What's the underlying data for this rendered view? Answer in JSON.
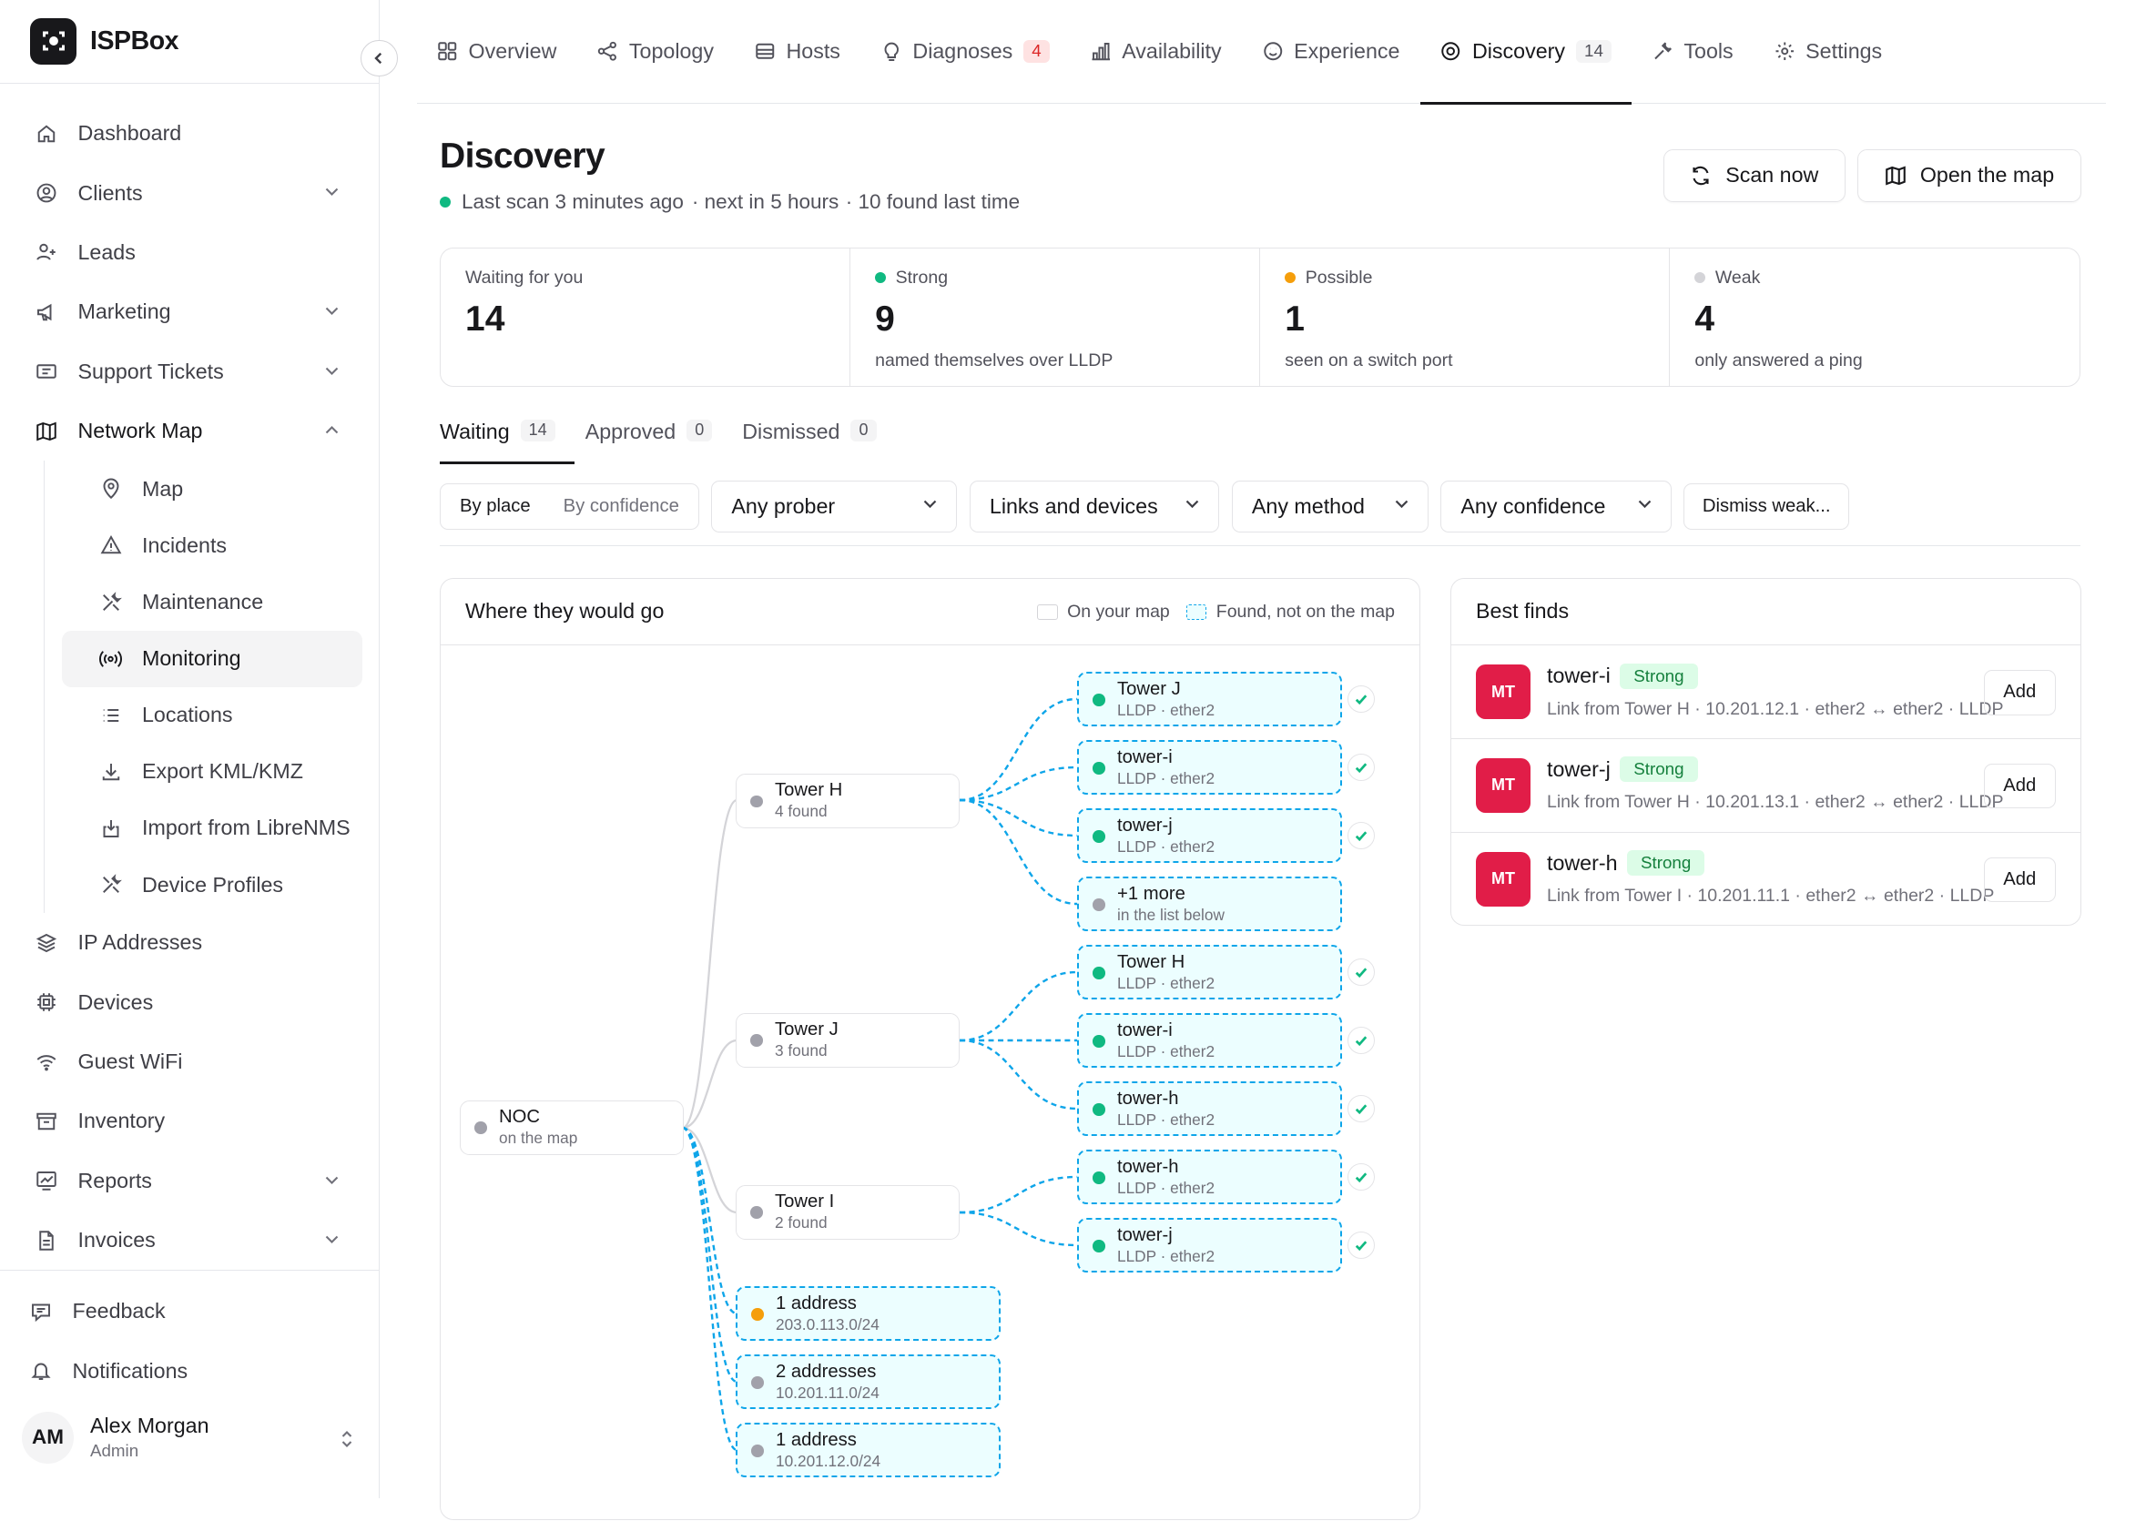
{
  "app": {
    "name": "ISPBox"
  },
  "sidebar": {
    "items": [
      {
        "label": "Dashboard",
        "icon": "home-icon"
      },
      {
        "label": "Clients",
        "icon": "user-circle-icon",
        "chevron": "down"
      },
      {
        "label": "Leads",
        "icon": "user-plus-icon"
      },
      {
        "label": "Marketing",
        "icon": "megaphone-icon",
        "chevron": "down"
      },
      {
        "label": "Support Tickets",
        "icon": "ticket-icon",
        "chevron": "down"
      },
      {
        "label": "Network Map",
        "icon": "map-icon",
        "chevron": "up"
      }
    ],
    "sub_items": [
      {
        "label": "Map",
        "icon": "pin-icon"
      },
      {
        "label": "Incidents",
        "icon": "warning-icon"
      },
      {
        "label": "Maintenance",
        "icon": "tools-icon"
      },
      {
        "label": "Monitoring",
        "icon": "radio-signal-icon"
      },
      {
        "label": "Locations",
        "icon": "list-icon"
      },
      {
        "label": "Export KML/KMZ",
        "icon": "download-icon"
      },
      {
        "label": "Import from LibreNMS",
        "icon": "import-icon"
      },
      {
        "label": "Device Profiles",
        "icon": "tools-icon"
      }
    ],
    "items_after": [
      {
        "label": "IP Addresses",
        "icon": "layers-icon"
      },
      {
        "label": "Devices",
        "icon": "chip-icon"
      },
      {
        "label": "Guest WiFi",
        "icon": "wifi-icon"
      },
      {
        "label": "Inventory",
        "icon": "archive-icon"
      },
      {
        "label": "Reports",
        "icon": "chart-icon",
        "chevron": "down"
      },
      {
        "label": "Invoices",
        "icon": "document-icon",
        "chevron": "down"
      }
    ],
    "footer": {
      "feedback": "Feedback",
      "notifications": "Notifications"
    },
    "user": {
      "initials": "AM",
      "name": "Alex Morgan",
      "role": "Admin"
    }
  },
  "tabs": [
    {
      "label": "Overview",
      "icon": "grid-icon"
    },
    {
      "label": "Topology",
      "icon": "share-icon"
    },
    {
      "label": "Hosts",
      "icon": "server-icon"
    },
    {
      "label": "Diagnoses",
      "icon": "lightbulb-icon",
      "badge": "4"
    },
    {
      "label": "Availability",
      "icon": "bar-chart-icon"
    },
    {
      "label": "Experience",
      "icon": "smile-icon"
    },
    {
      "label": "Discovery",
      "icon": "target-icon",
      "badge": "14"
    },
    {
      "label": "Tools",
      "icon": "wrench-icon"
    },
    {
      "label": "Settings",
      "icon": "gear-icon"
    }
  ],
  "header": {
    "title": "Discovery",
    "last_scan": "Last scan 3 minutes ago",
    "next_scan": "· next in 5 hours",
    "found_last": "· 10 found last time",
    "scan_button": "Scan now",
    "open_map_button": "Open the map"
  },
  "stats": [
    {
      "label": "Waiting for you",
      "value": "14",
      "sub": ""
    },
    {
      "label": "Strong",
      "value": "9",
      "sub": "named themselves over LLDP",
      "dot": "#10b981"
    },
    {
      "label": "Possible",
      "value": "1",
      "sub": "seen on a switch port",
      "dot": "#f59e0b"
    },
    {
      "label": "Weak",
      "value": "4",
      "sub": "only answered a ping",
      "dot": "#d4d4d8"
    }
  ],
  "subtabs": [
    {
      "label": "Waiting",
      "count": "14"
    },
    {
      "label": "Approved",
      "count": "0"
    },
    {
      "label": "Dismissed",
      "count": "0"
    }
  ],
  "filters": {
    "group_on": "By place",
    "group_off": "By confidence",
    "prober": "Any prober",
    "links": "Links and devices",
    "method": "Any method",
    "confidence": "Any confidence",
    "dismiss": "Dismiss weak..."
  },
  "tree": {
    "title": "Where they would go",
    "legend_on_map": "On your map",
    "legend_found": "Found, not on the map",
    "root": {
      "title": "NOC",
      "sub": "on the map"
    },
    "towers": [
      {
        "title": "Tower H",
        "sub": "4 found"
      },
      {
        "title": "Tower J",
        "sub": "3 found"
      },
      {
        "title": "Tower I",
        "sub": "2 found"
      }
    ],
    "children": [
      {
        "title": "Tower J",
        "sub": "LLDP · ether2"
      },
      {
        "title": "tower-i",
        "sub": "LLDP · ether2"
      },
      {
        "title": "tower-j",
        "sub": "LLDP · ether2"
      },
      {
        "title": "+1 more",
        "sub": "in the list below"
      },
      {
        "title": "Tower H",
        "sub": "LLDP · ether2"
      },
      {
        "title": "tower-i",
        "sub": "LLDP · ether2"
      },
      {
        "title": "tower-h",
        "sub": "LLDP · ether2"
      },
      {
        "title": "tower-h",
        "sub": "LLDP · ether2"
      },
      {
        "title": "tower-j",
        "sub": "LLDP · ether2"
      }
    ],
    "addresses": [
      {
        "title": "1 address",
        "sub": "203.0.113.0/24"
      },
      {
        "title": "2 addresses",
        "sub": "10.201.11.0/24"
      },
      {
        "title": "1 address",
        "sub": "10.201.12.0/24"
      }
    ]
  },
  "best_finds": {
    "title": "Best finds",
    "add_label": "Add",
    "items": [
      {
        "vendor": "MT",
        "name": "tower-i",
        "confidence": "Strong",
        "desc": "Link from Tower H · 10.201.12.1 · ether2 ↔ ether2 · LLDP"
      },
      {
        "vendor": "MT",
        "name": "tower-j",
        "confidence": "Strong",
        "desc": "Link from Tower H · 10.201.13.1 · ether2 ↔ ether2 · LLDP"
      },
      {
        "vendor": "MT",
        "name": "tower-h",
        "confidence": "Strong",
        "desc": "Link from Tower I · 10.201.11.1 · ether2 ↔ ether2 · LLDP"
      }
    ]
  },
  "colors": {
    "accent": "#0ea5e9",
    "strong": "#10b981",
    "possible": "#f59e0b",
    "weak": "#a1a1aa",
    "vendor": "#e11d48"
  }
}
